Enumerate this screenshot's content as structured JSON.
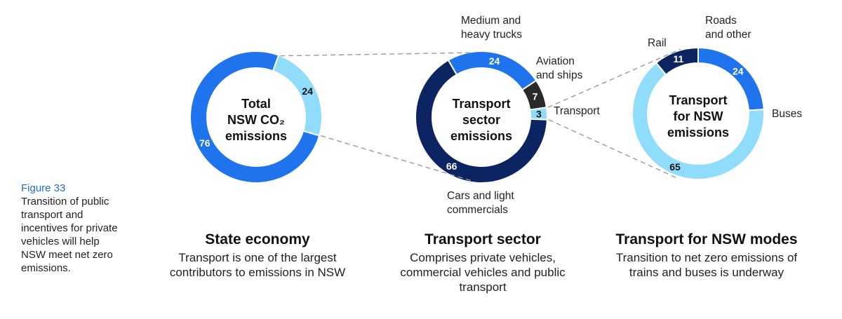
{
  "figure": {
    "number": "Figure 33",
    "caption": "Transition of public transport and incentives for private vehicles will help NSW meet net zero emissions."
  },
  "colors": {
    "dark_navy": "#0c2562",
    "bright_blue": "#1f74ee",
    "light_blue": "#8fdcfb",
    "charcoal": "#2a2a2a",
    "connector": "#9a9a9a"
  },
  "chart_data": [
    {
      "type": "pie",
      "center_label": [
        "Total",
        "NSW CO₂",
        "emissions"
      ],
      "slices": [
        {
          "value": 24,
          "label": "24",
          "color": "#8fdcfb",
          "text_color": "#111111"
        },
        {
          "value": 76,
          "label": "76",
          "color": "#1f74ee",
          "text_color": "#ffffff"
        }
      ],
      "panel_title": "State economy",
      "panel_subtitle": "Transport is one of the largest contributors to emissions in NSW"
    },
    {
      "type": "pie",
      "center_label": [
        "Transport",
        "sector",
        "emissions"
      ],
      "slices": [
        {
          "value": 3,
          "label": "3",
          "color": "#8fdcfb",
          "text_color": "#111111",
          "category": "Transport"
        },
        {
          "value": 66,
          "label": "66",
          "color": "#0c2562",
          "text_color": "#ffffff",
          "category": "Cars and light commercials"
        },
        {
          "value": 24,
          "label": "24",
          "color": "#1f74ee",
          "text_color": "#ffffff",
          "category": "Medium and heavy trucks"
        },
        {
          "value": 7,
          "label": "7",
          "color": "#2a2a2a",
          "text_color": "#ffffff",
          "category": "Aviation and ships"
        }
      ],
      "panel_title": "Transport sector",
      "panel_subtitle": "Comprises private vehicles, commercial vehicles and public transport"
    },
    {
      "type": "pie",
      "center_label": [
        "Transport",
        "for NSW",
        "emissions"
      ],
      "slices": [
        {
          "value": 24,
          "label": "24",
          "color": "#1f74ee",
          "text_color": "#ffffff",
          "category": "Roads and other"
        },
        {
          "value": 65,
          "label": "65",
          "color": "#8fdcfb",
          "text_color": "#111111",
          "category": "Buses"
        },
        {
          "value": 11,
          "label": "11",
          "color": "#0c2562",
          "text_color": "#ffffff",
          "category": "Rail"
        }
      ],
      "panel_title": "Transport for NSW modes",
      "panel_subtitle": "Transition to net zero emissions of trains and buses is underway"
    }
  ]
}
